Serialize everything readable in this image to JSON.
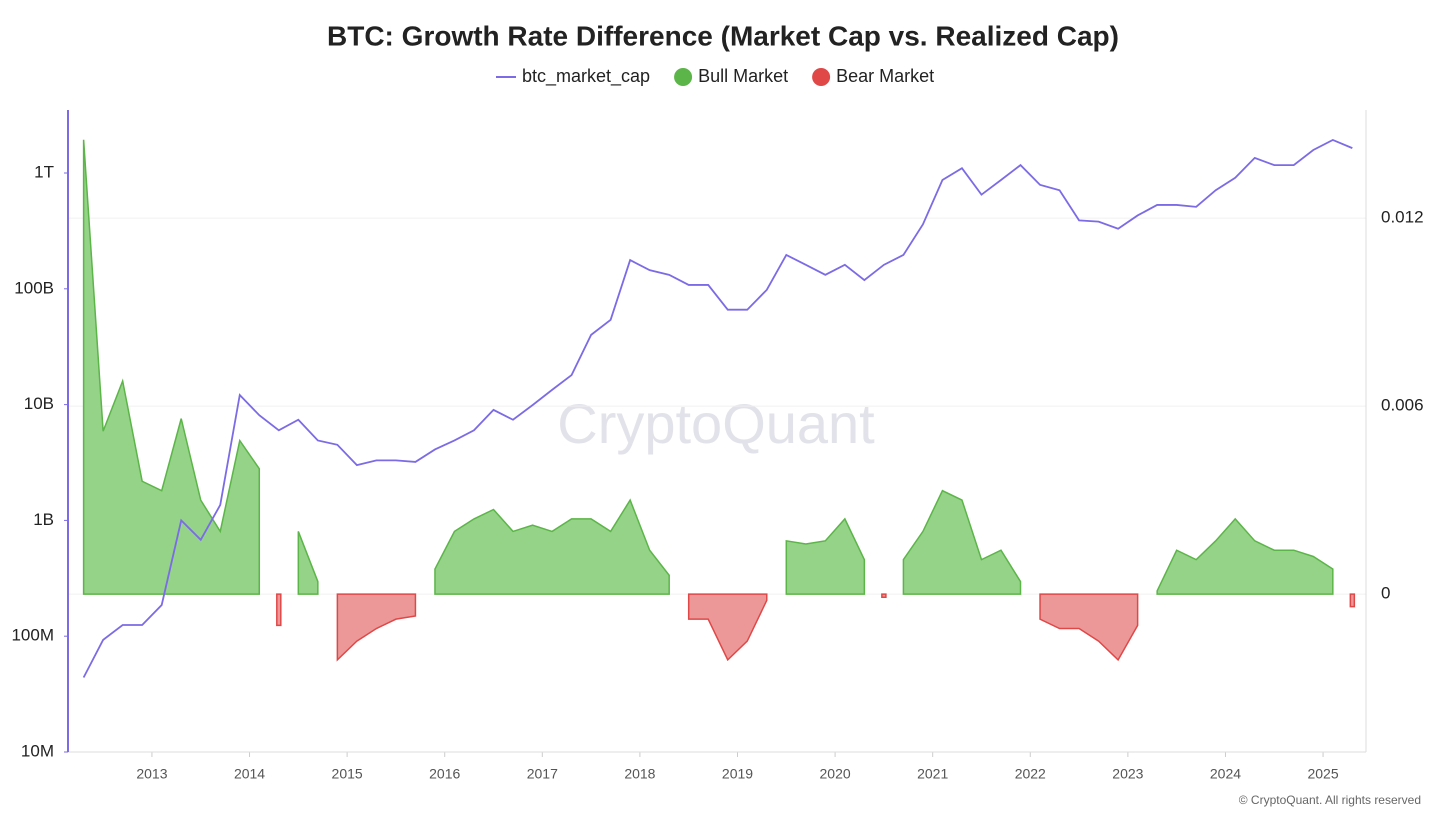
{
  "chart_data": {
    "type": "combo",
    "title": "BTC: Growth Rate Difference (Market Cap vs. Realized Cap)",
    "watermark": "CryptoQuant",
    "credit": "© CryptoQuant. All rights reserved",
    "x": [
      2012.3,
      2012.5,
      2012.7,
      2012.9,
      2013.1,
      2013.3,
      2013.5,
      2013.7,
      2013.9,
      2014.1,
      2014.3,
      2014.5,
      2014.7,
      2014.9,
      2015.1,
      2015.3,
      2015.5,
      2015.7,
      2015.9,
      2016.1,
      2016.3,
      2016.5,
      2016.7,
      2016.9,
      2017.1,
      2017.3,
      2017.5,
      2017.7,
      2017.9,
      2018.1,
      2018.3,
      2018.5,
      2018.7,
      2018.9,
      2019.1,
      2019.3,
      2019.5,
      2019.7,
      2019.9,
      2020.1,
      2020.3,
      2020.5,
      2020.7,
      2020.9,
      2021.1,
      2021.3,
      2021.5,
      2021.7,
      2021.9,
      2022.1,
      2022.3,
      2022.5,
      2022.7,
      2022.9,
      2023.1,
      2023.3,
      2023.5,
      2023.7,
      2023.9,
      2024.1,
      2024.3,
      2024.5,
      2024.7,
      2024.9,
      2025.1,
      2025.3
    ],
    "xlim": [
      2012.14,
      2025.44
    ],
    "xticks": [
      2013,
      2014,
      2015,
      2016,
      2017,
      2018,
      2019,
      2020,
      2021,
      2022,
      2023,
      2024,
      2025
    ],
    "ylog": true,
    "ylim": [
      10000000,
      3500000000000
    ],
    "yticks": [
      {
        "value": 10000000,
        "label": "10M"
      },
      {
        "value": 100000000,
        "label": "100M"
      },
      {
        "value": 1000000000,
        "label": "1B"
      },
      {
        "value": 10000000000,
        "label": "10B"
      },
      {
        "value": 100000000000,
        "label": "100B"
      },
      {
        "value": 1000000000000,
        "label": "1T"
      }
    ],
    "y2lim": [
      -0.00504,
      0.01545
    ],
    "y2ticks": [
      0,
      0.006,
      0.012
    ],
    "grid": true,
    "series": [
      {
        "name": "btc_market_cap",
        "type": "line",
        "color": "#7b6be6",
        "values": [
          44000000,
          93000000,
          125000000,
          125000000,
          186000000,
          1000000000,
          680000000,
          1360000000,
          12100000000,
          8100000000,
          6000000000,
          7400000000,
          4900000000,
          4500000000,
          3000000000,
          3300000000,
          3300000000,
          3200000000,
          4100000000,
          4900000000,
          6000000000,
          9000000000,
          7400000000,
          9900000000,
          13400000000,
          18000000000,
          40000000000,
          54000000000,
          177000000000,
          145000000000,
          132000000000,
          108000000000,
          108000000000,
          66000000000,
          66000000000,
          98000000000,
          196000000000,
          161000000000,
          132000000000,
          161000000000,
          119000000000,
          161000000000,
          196000000000,
          360000000000,
          870000000000,
          1100000000000,
          650000000000,
          870000000000,
          1170000000000,
          790000000000,
          710000000000,
          390000000000,
          380000000000,
          330000000000,
          430000000000,
          530000000000,
          530000000000,
          510000000000,
          710000000000,
          910000000000,
          1350000000000,
          1170000000000,
          1170000000000,
          1580000000000,
          1930000000000,
          1640000000000
        ]
      },
      {
        "name": "Bull Market",
        "type": "area",
        "axis": "y2",
        "color": "#94d388",
        "stroke": "#5cb548",
        "values": [
          0.0145,
          0.0052,
          0.0068,
          0.0036,
          0.0033,
          0.0056,
          0.003,
          0.002,
          0.0049,
          0.004,
          null,
          0.002,
          0.0004,
          null,
          null,
          null,
          null,
          null,
          0.0008,
          0.002,
          0.0024,
          0.0027,
          0.002,
          0.0022,
          0.002,
          0.0024,
          0.0024,
          0.002,
          0.003,
          0.0014,
          0.0006,
          null,
          null,
          null,
          null,
          null,
          0.0017,
          0.0016,
          0.0017,
          0.0024,
          0.0011,
          null,
          0.0011,
          0.002,
          0.0033,
          0.003,
          0.0011,
          0.0014,
          0.0004,
          null,
          null,
          null,
          null,
          null,
          null,
          0.0001,
          0.0014,
          0.0011,
          0.0017,
          0.0024,
          0.0017,
          0.0014,
          0.0014,
          0.0012,
          0.0008,
          null
        ]
      },
      {
        "name": "Bear Market",
        "type": "area",
        "axis": "y2",
        "color": "#ec9898",
        "stroke": "#e04848",
        "values": [
          null,
          null,
          null,
          null,
          null,
          null,
          null,
          null,
          null,
          null,
          -0.001,
          null,
          null,
          -0.0021,
          -0.0015,
          -0.0011,
          -0.0008,
          -0.0007,
          null,
          null,
          null,
          null,
          null,
          null,
          null,
          null,
          null,
          null,
          null,
          null,
          null,
          -0.0008,
          -0.0008,
          -0.0021,
          -0.0015,
          -0.0002,
          null,
          null,
          null,
          null,
          null,
          -0.0001,
          null,
          null,
          null,
          null,
          null,
          null,
          null,
          -0.0008,
          -0.0011,
          -0.0011,
          -0.0015,
          -0.0021,
          -0.001,
          null,
          null,
          null,
          null,
          null,
          null,
          null,
          null,
          null,
          null,
          -0.0004
        ]
      }
    ]
  }
}
